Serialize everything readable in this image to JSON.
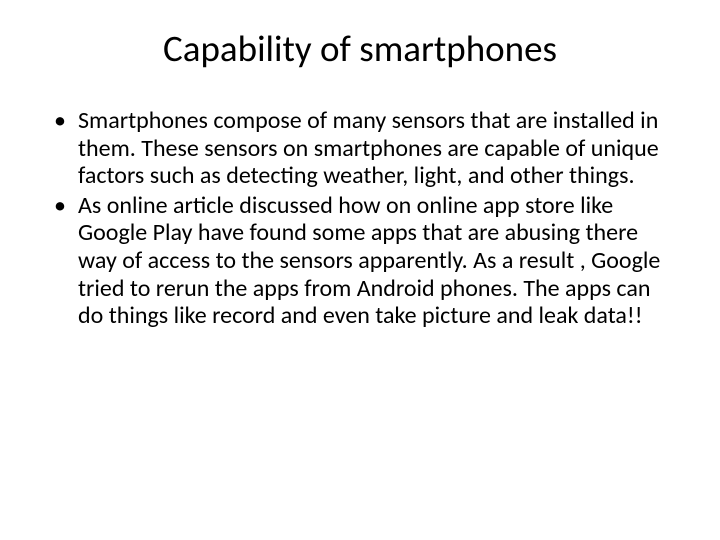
{
  "slide": {
    "title": "Capability of smartphones",
    "title_fontsize": 37,
    "title_color": "#000000",
    "title_align": "center",
    "background_color": "#ffffff",
    "bullets": [
      {
        "text": "Smartphones compose of many sensors that are installed in them. These sensors on smartphones are capable of unique factors such as detecting weather, light, and other things."
      },
      {
        "text": "As online article discussed how on online app store like Google Play have found some apps that are abusing there way of access to the sensors apparently. As a result , Google tried to rerun the apps from Android phones. The apps can do things like record and even take picture and leak data!!"
      }
    ],
    "bullet_fontsize": 24,
    "bullet_color": "#000000",
    "bullet_marker": "•"
  }
}
